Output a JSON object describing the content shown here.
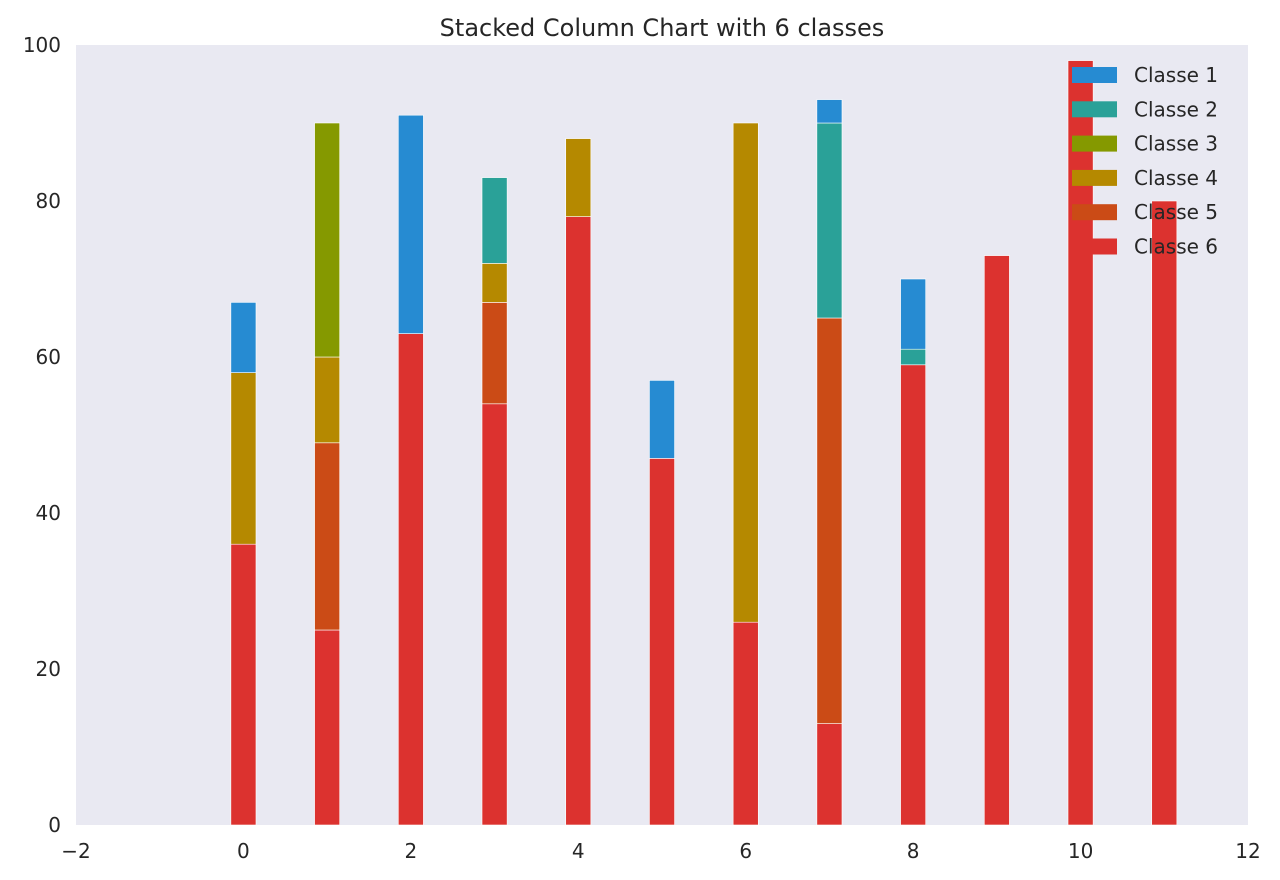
{
  "chart_data": {
    "type": "bar",
    "stacked": true,
    "title": "Stacked Column Chart with 6 classes",
    "xlabel": "",
    "ylabel": "",
    "xlim": [
      -2,
      12
    ],
    "ylim": [
      0,
      100
    ],
    "x_ticks": [
      -2,
      0,
      2,
      4,
      6,
      8,
      10,
      12
    ],
    "x_tick_labels": [
      "−2",
      "0",
      "2",
      "4",
      "6",
      "8",
      "10",
      "12"
    ],
    "y_ticks": [
      0,
      20,
      40,
      60,
      80,
      100
    ],
    "y_tick_labels": [
      "0",
      "20",
      "40",
      "60",
      "80",
      "100"
    ],
    "bar_width": 0.3,
    "grid": false,
    "background": "#e9e9f2",
    "legend_position": "top-right",
    "x": [
      0,
      1,
      2,
      3,
      4,
      5,
      6,
      7,
      8,
      9,
      10,
      11
    ],
    "series": [
      {
        "name": "Classe 6",
        "color": "#dc322f",
        "values": [
          36,
          25,
          63,
          54,
          78,
          47,
          26,
          13,
          59,
          73,
          98,
          80
        ]
      },
      {
        "name": "Classe 5",
        "color": "#cb4b16",
        "values": [
          0,
          24,
          0,
          13,
          0,
          0,
          0,
          52,
          0,
          0,
          0,
          0
        ]
      },
      {
        "name": "Classe 4",
        "color": "#b58900",
        "values": [
          22,
          11,
          0,
          5,
          10,
          0,
          64,
          0,
          0,
          0,
          0,
          0
        ]
      },
      {
        "name": "Classe 3",
        "color": "#859900",
        "values": [
          0,
          30,
          0,
          0,
          0,
          0,
          0,
          0,
          0,
          0,
          0,
          0
        ]
      },
      {
        "name": "Classe 2",
        "color": "#2aa198",
        "values": [
          0,
          0,
          0,
          11,
          0,
          0,
          0,
          25,
          2,
          0,
          0,
          0
        ]
      },
      {
        "name": "Classe 1",
        "color": "#268bd2",
        "values": [
          9,
          0,
          28,
          0,
          0,
          10,
          0,
          3,
          9,
          0,
          0,
          0
        ]
      }
    ],
    "legend_order": [
      "Classe 1",
      "Classe 2",
      "Classe 3",
      "Classe 4",
      "Classe 5",
      "Classe 6"
    ]
  }
}
